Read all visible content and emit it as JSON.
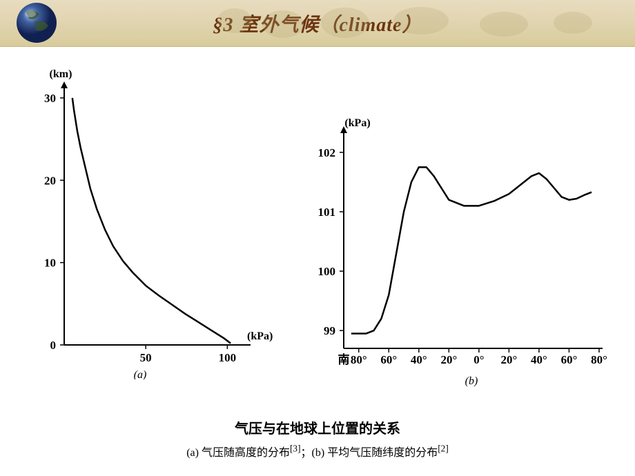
{
  "header": {
    "title_prefix": "§3  室外气候（",
    "title_en": "climate",
    "title_suffix": "）",
    "title_color": "#6b3410",
    "title_fontsize": 28,
    "bg_gradient": [
      "#e8dcc0",
      "#e0d4b0",
      "#d8cc9c"
    ]
  },
  "chart_a": {
    "type": "line",
    "ylabel": "(km)",
    "xlabel": "(kPa)",
    "sublabel": "(a)",
    "xlim": [
      0,
      110
    ],
    "ylim": [
      0,
      31
    ],
    "xticks": [
      50,
      100
    ],
    "yticks": [
      0,
      10,
      20,
      30
    ],
    "line_color": "#000000",
    "line_width": 2.5,
    "background_color": "#ffffff",
    "points": [
      [
        5,
        30
      ],
      [
        6,
        28.5
      ],
      [
        8,
        26
      ],
      [
        10,
        24
      ],
      [
        13,
        21.5
      ],
      [
        16,
        19
      ],
      [
        20,
        16.5
      ],
      [
        25,
        14
      ],
      [
        30,
        12
      ],
      [
        36,
        10.2
      ],
      [
        42,
        8.8
      ],
      [
        50,
        7.2
      ],
      [
        58,
        6
      ],
      [
        66,
        4.9
      ],
      [
        74,
        3.8
      ],
      [
        82,
        2.8
      ],
      [
        90,
        1.8
      ],
      [
        98,
        0.8
      ],
      [
        102,
        0.2
      ]
    ]
  },
  "chart_b": {
    "type": "line",
    "ylabel": "(kPa)",
    "sublabel": "(b)",
    "xlim": [
      -90,
      80
    ],
    "ylim": [
      98.7,
      102.3
    ],
    "xtick_labels": [
      "南",
      "80°",
      "60°",
      "40°",
      "20°",
      "0°",
      "20°",
      "40°",
      "60°",
      "80°"
    ],
    "xtick_positions": [
      -90,
      -80,
      -60,
      -40,
      -20,
      0,
      20,
      40,
      60,
      80
    ],
    "yticks": [
      99,
      100,
      101,
      102
    ],
    "line_color": "#000000",
    "line_width": 2.5,
    "background_color": "#ffffff",
    "points": [
      [
        -85,
        98.95
      ],
      [
        -80,
        98.95
      ],
      [
        -75,
        98.95
      ],
      [
        -70,
        99.0
      ],
      [
        -65,
        99.2
      ],
      [
        -60,
        99.6
      ],
      [
        -55,
        100.3
      ],
      [
        -50,
        101.0
      ],
      [
        -45,
        101.5
      ],
      [
        -40,
        101.75
      ],
      [
        -35,
        101.75
      ],
      [
        -30,
        101.6
      ],
      [
        -25,
        101.4
      ],
      [
        -20,
        101.2
      ],
      [
        -10,
        101.1
      ],
      [
        0,
        101.1
      ],
      [
        10,
        101.18
      ],
      [
        20,
        101.3
      ],
      [
        30,
        101.5
      ],
      [
        35,
        101.6
      ],
      [
        40,
        101.65
      ],
      [
        45,
        101.55
      ],
      [
        50,
        101.4
      ],
      [
        55,
        101.25
      ],
      [
        60,
        101.2
      ],
      [
        65,
        101.22
      ],
      [
        70,
        101.28
      ],
      [
        75,
        101.33
      ]
    ]
  },
  "footer": {
    "main": "气压与在地球上位置的关系",
    "sub_a": "(a) 气压随高度的分布",
    "ref_a": "[3]",
    "sub_sep": "；",
    "sub_b": "(b) 平均气压随纬度的分布",
    "ref_b": "[2]"
  }
}
